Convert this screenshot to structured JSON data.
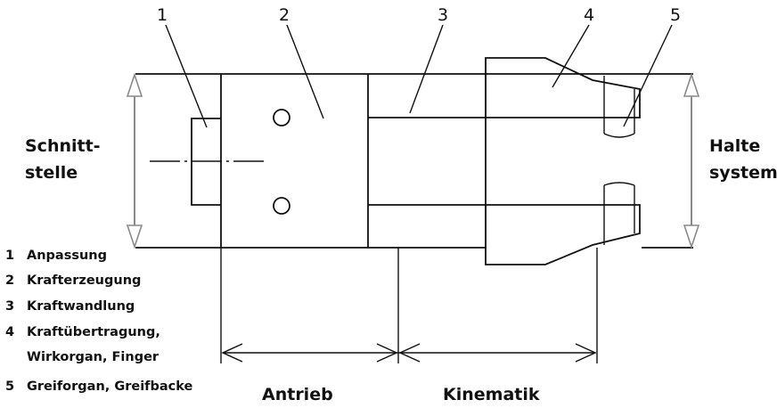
{
  "callouts": [
    "1",
    "2",
    "3",
    "4",
    "5"
  ],
  "left_label": [
    "Schnitt-",
    "stelle"
  ],
  "right_label": [
    "Halte",
    "system"
  ],
  "legend": [
    {
      "num": "1",
      "text": "Anpassung"
    },
    {
      "num": "2",
      "text": "Krafterzeugung"
    },
    {
      "num": "3",
      "text": "Kraftwandlung"
    },
    {
      "num": "4",
      "text": "Kraftübertragung,"
    },
    {
      "num": "",
      "text": "Wirkorgan, Finger"
    },
    {
      "num": "5",
      "text": "Greiforgan, Greifbacke"
    }
  ],
  "bottom_labels": {
    "antrieb": "Antrieb",
    "kinematik": "Kinematik"
  }
}
